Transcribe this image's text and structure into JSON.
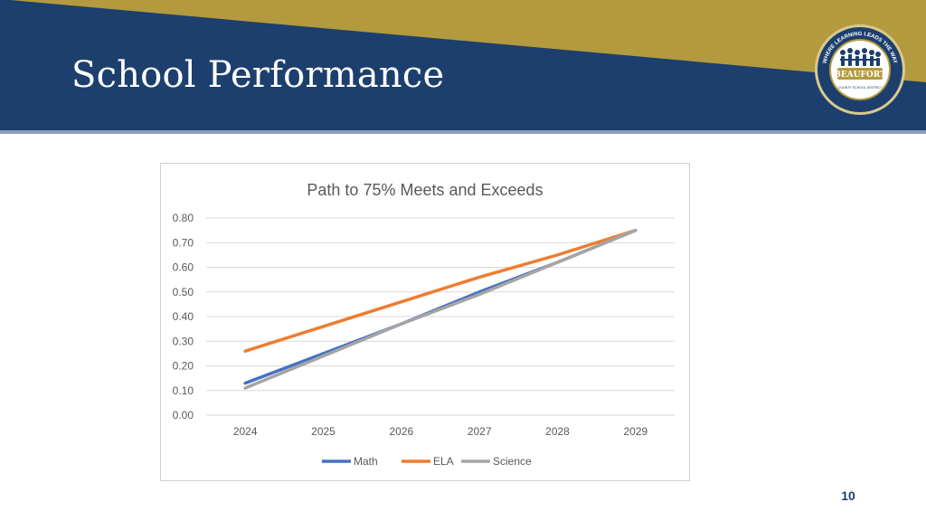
{
  "slide": {
    "title": "School Performance",
    "page_number": "10"
  },
  "logo": {
    "arc_text": "WHERE LEARNING LEADS THE WAY",
    "name": "BEAUFORT",
    "subtitle": "COUNTY SCHOOL DISTRICT"
  },
  "colors": {
    "navy": "#1d3f6e",
    "gold": "#b39a3e",
    "math": "#4472c4",
    "ela": "#ed7d31",
    "science": "#a5a5a5"
  },
  "chart_data": {
    "type": "line",
    "title": "Path to 75% Meets and Exceeds",
    "categories": [
      "2024",
      "2025",
      "2026",
      "2027",
      "2028",
      "2029"
    ],
    "series": [
      {
        "name": "Math",
        "values": [
          0.13,
          0.25,
          0.37,
          0.5,
          0.62,
          0.75
        ]
      },
      {
        "name": "ELA",
        "values": [
          0.26,
          0.36,
          0.46,
          0.56,
          0.65,
          0.75
        ]
      },
      {
        "name": "Science",
        "values": [
          0.11,
          0.24,
          0.37,
          0.49,
          0.62,
          0.75
        ]
      }
    ],
    "ylim": [
      0,
      0.8
    ],
    "yticks": [
      "0.00",
      "0.10",
      "0.20",
      "0.30",
      "0.40",
      "0.50",
      "0.60",
      "0.70",
      "0.80"
    ],
    "xlabel": "",
    "ylabel": "",
    "grid": true,
    "legend": "bottom"
  }
}
